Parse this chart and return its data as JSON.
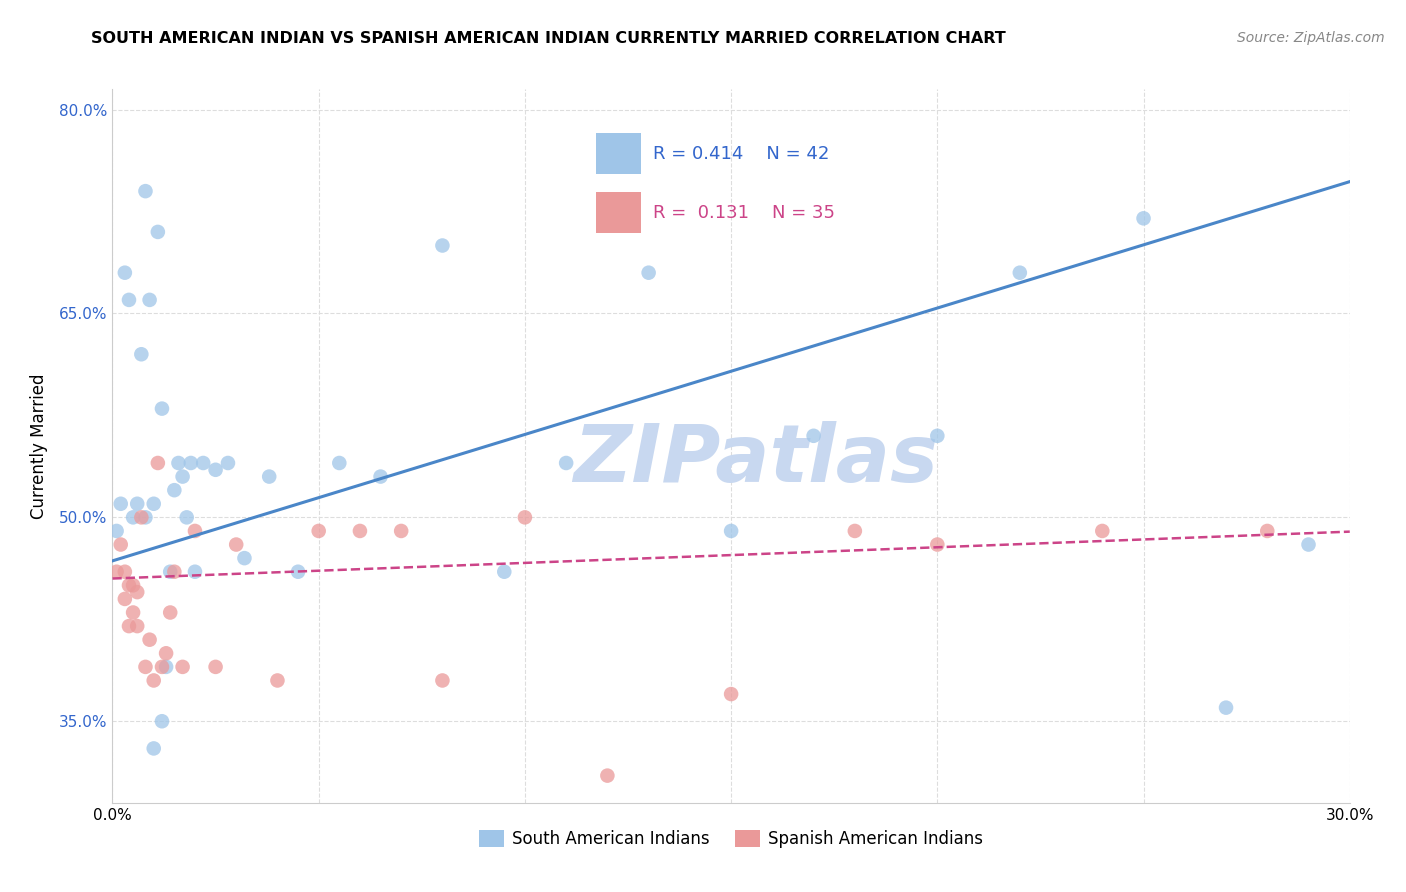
{
  "title": "SOUTH AMERICAN INDIAN VS SPANISH AMERICAN INDIAN CURRENTLY MARRIED CORRELATION CHART",
  "source": "Source: ZipAtlas.com",
  "ylabel": "Currently Married",
  "xlim": [
    0.0,
    0.3
  ],
  "ylim": [
    0.29,
    0.815
  ],
  "yticks": [
    0.35,
    0.5,
    0.65,
    0.8
  ],
  "ytick_labels": [
    "35.0%",
    "50.0%",
    "65.0%",
    "80.0%"
  ],
  "xticks": [
    0.0,
    0.05,
    0.1,
    0.15,
    0.2,
    0.25,
    0.3
  ],
  "xtick_labels": [
    "0.0%",
    "",
    "",
    "",
    "",
    "",
    "30.0%"
  ],
  "blue_color": "#9fc5e8",
  "pink_color": "#ea9999",
  "blue_line_color": "#4a86c8",
  "pink_line_color": "#cc4488",
  "watermark": "ZIPatlas",
  "watermark_color": "#c8d8f0",
  "blue_x": [
    0.001,
    0.002,
    0.003,
    0.004,
    0.005,
    0.006,
    0.007,
    0.008,
    0.009,
    0.01,
    0.011,
    0.012,
    0.013,
    0.014,
    0.015,
    0.016,
    0.017,
    0.018,
    0.019,
    0.02,
    0.022,
    0.025,
    0.028,
    0.032,
    0.038,
    0.045,
    0.055,
    0.065,
    0.08,
    0.095,
    0.11,
    0.13,
    0.15,
    0.17,
    0.2,
    0.22,
    0.25,
    0.27,
    0.29,
    0.01,
    0.012,
    0.008
  ],
  "blue_y": [
    0.49,
    0.51,
    0.68,
    0.66,
    0.5,
    0.51,
    0.62,
    0.5,
    0.66,
    0.51,
    0.71,
    0.58,
    0.39,
    0.46,
    0.52,
    0.54,
    0.53,
    0.5,
    0.54,
    0.46,
    0.54,
    0.535,
    0.54,
    0.47,
    0.53,
    0.46,
    0.54,
    0.53,
    0.7,
    0.46,
    0.54,
    0.68,
    0.49,
    0.56,
    0.56,
    0.68,
    0.72,
    0.36,
    0.48,
    0.33,
    0.35,
    0.74
  ],
  "pink_x": [
    0.001,
    0.002,
    0.003,
    0.003,
    0.004,
    0.004,
    0.005,
    0.005,
    0.006,
    0.006,
    0.007,
    0.008,
    0.009,
    0.01,
    0.011,
    0.012,
    0.013,
    0.014,
    0.015,
    0.017,
    0.02,
    0.025,
    0.03,
    0.04,
    0.05,
    0.06,
    0.07,
    0.08,
    0.1,
    0.12,
    0.15,
    0.18,
    0.2,
    0.24,
    0.28
  ],
  "pink_y": [
    0.46,
    0.48,
    0.44,
    0.46,
    0.42,
    0.45,
    0.43,
    0.45,
    0.42,
    0.445,
    0.5,
    0.39,
    0.41,
    0.38,
    0.54,
    0.39,
    0.4,
    0.43,
    0.46,
    0.39,
    0.49,
    0.39,
    0.48,
    0.38,
    0.49,
    0.49,
    0.49,
    0.38,
    0.5,
    0.31,
    0.37,
    0.49,
    0.48,
    0.49,
    0.49
  ],
  "blue_slope": 0.93,
  "blue_intercept": 0.468,
  "pink_slope": 0.115,
  "pink_intercept": 0.455,
  "legend_r1": "R = 0.414",
  "legend_n1": "N = 42",
  "legend_r2": "R =  0.131",
  "legend_n2": "N = 35",
  "legend_label1": "South American Indians",
  "legend_label2": "Spanish American Indians"
}
